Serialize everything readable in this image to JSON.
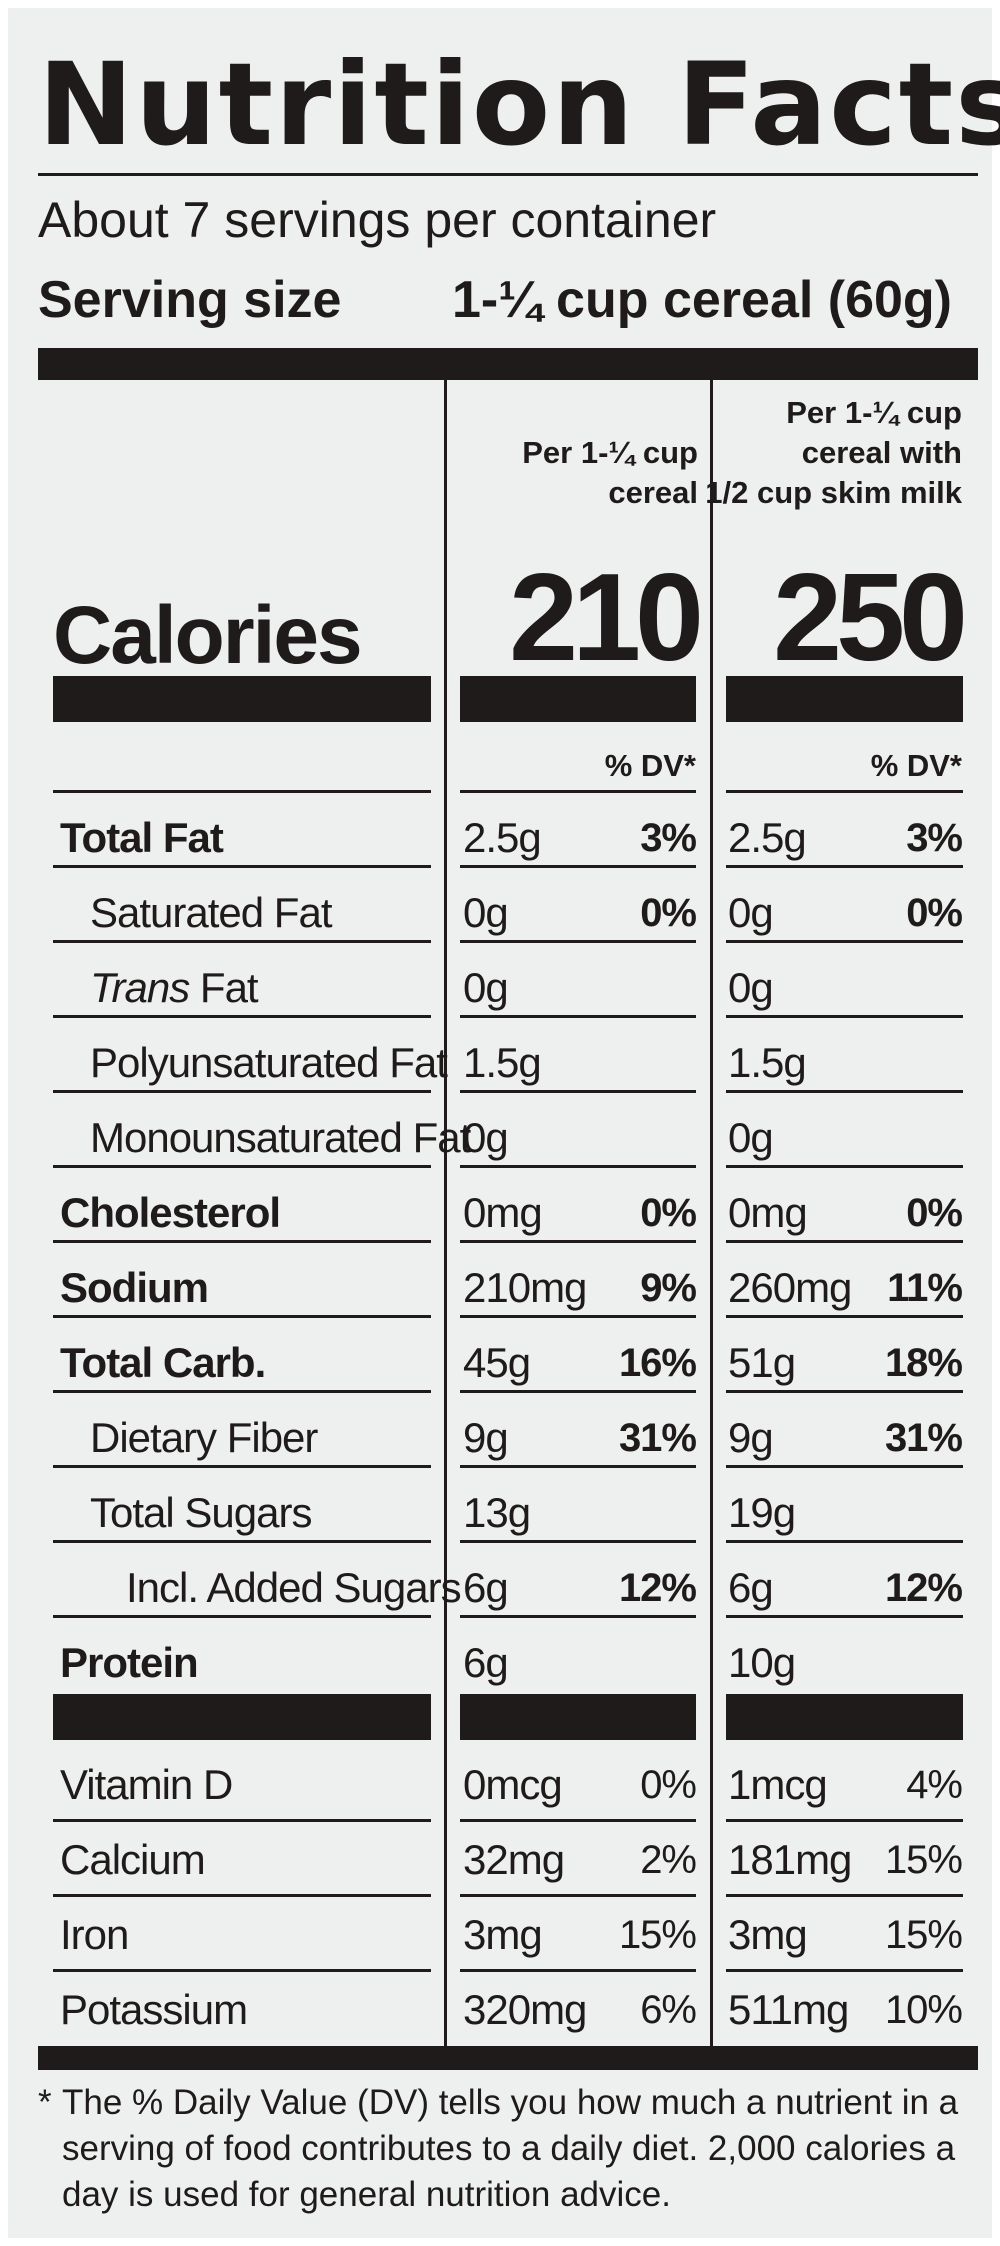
{
  "title": "Nutrition Facts",
  "servings_per_container": "About 7 servings per container",
  "serving_size": {
    "label": "Serving size",
    "value": "1-¼ cup cereal (60g)"
  },
  "columns": [
    {
      "header": [
        "Per 1-¼ cup",
        "cereal"
      ],
      "calories": "210",
      "dv_header": "% DV*"
    },
    {
      "header": [
        "Per 1-¼ cup",
        "cereal with",
        "1/2 cup skim milk"
      ],
      "calories": "250",
      "dv_header": "% DV*"
    }
  ],
  "calories_label": "Calories",
  "nutrients": [
    {
      "name": "Total Fat",
      "c1_amount": "2.5g",
      "c1_dv": "3%",
      "c2_amount": "2.5g",
      "c2_dv": "3%"
    },
    {
      "name": "Saturated Fat",
      "c1_amount": "0g",
      "c1_dv": "0%",
      "c2_amount": "0g",
      "c2_dv": "0%"
    },
    {
      "name_italic": "Trans",
      "name_rest": " Fat",
      "c1_amount": "0g",
      "c1_dv": "",
      "c2_amount": "0g",
      "c2_dv": ""
    },
    {
      "name": "Polyunsaturated Fat",
      "c1_amount": "1.5g",
      "c1_dv": "",
      "c2_amount": "1.5g",
      "c2_dv": ""
    },
    {
      "name": "Monounsaturated Fat",
      "c1_amount": "0g",
      "c1_dv": "",
      "c2_amount": "0g",
      "c2_dv": ""
    },
    {
      "name": "Cholesterol",
      "c1_amount": "0mg",
      "c1_dv": "0%",
      "c2_amount": "0mg",
      "c2_dv": "0%"
    },
    {
      "name": "Sodium",
      "c1_amount": "210mg",
      "c1_dv": "9%",
      "c2_amount": "260mg",
      "c2_dv": "11%"
    },
    {
      "name": "Total Carb.",
      "c1_amount": "45g",
      "c1_dv": "16%",
      "c2_amount": "51g",
      "c2_dv": "18%"
    },
    {
      "name": "Dietary Fiber",
      "c1_amount": "9g",
      "c1_dv": "31%",
      "c2_amount": "9g",
      "c2_dv": "31%"
    },
    {
      "name": "Total Sugars",
      "c1_amount": "13g",
      "c1_dv": "",
      "c2_amount": "19g",
      "c2_dv": ""
    },
    {
      "name": "Incl. Added Sugars",
      "c1_amount": "6g",
      "c1_dv": "12%",
      "c2_amount": "6g",
      "c2_dv": "12%"
    },
    {
      "name": "Protein",
      "c1_amount": "6g",
      "c1_dv": "",
      "c2_amount": "10g",
      "c2_dv": ""
    }
  ],
  "vitamins": [
    {
      "name": "Vitamin D",
      "c1_amount": "0mcg",
      "c1_dv": "0%",
      "c2_amount": "1mcg",
      "c2_dv": "4%"
    },
    {
      "name": "Calcium",
      "c1_amount": "32mg",
      "c1_dv": "2%",
      "c2_amount": "181mg",
      "c2_dv": "15%"
    },
    {
      "name": "Iron",
      "c1_amount": "3mg",
      "c1_dv": "15%",
      "c2_amount": "3mg",
      "c2_dv": "15%"
    },
    {
      "name": "Potassium",
      "c1_amount": "320mg",
      "c1_dv": "6%",
      "c2_amount": "511mg",
      "c2_dv": "10%"
    }
  ],
  "footnote_star": "*",
  "footnote": "The % Daily Value (DV) tells you how much a nutrient in a serving of food contributes to a daily diet. 2,000 calories a day is used for general nutrition advice.",
  "colors": {
    "ink": "#1e1b1a",
    "background": "#eef0ef"
  }
}
